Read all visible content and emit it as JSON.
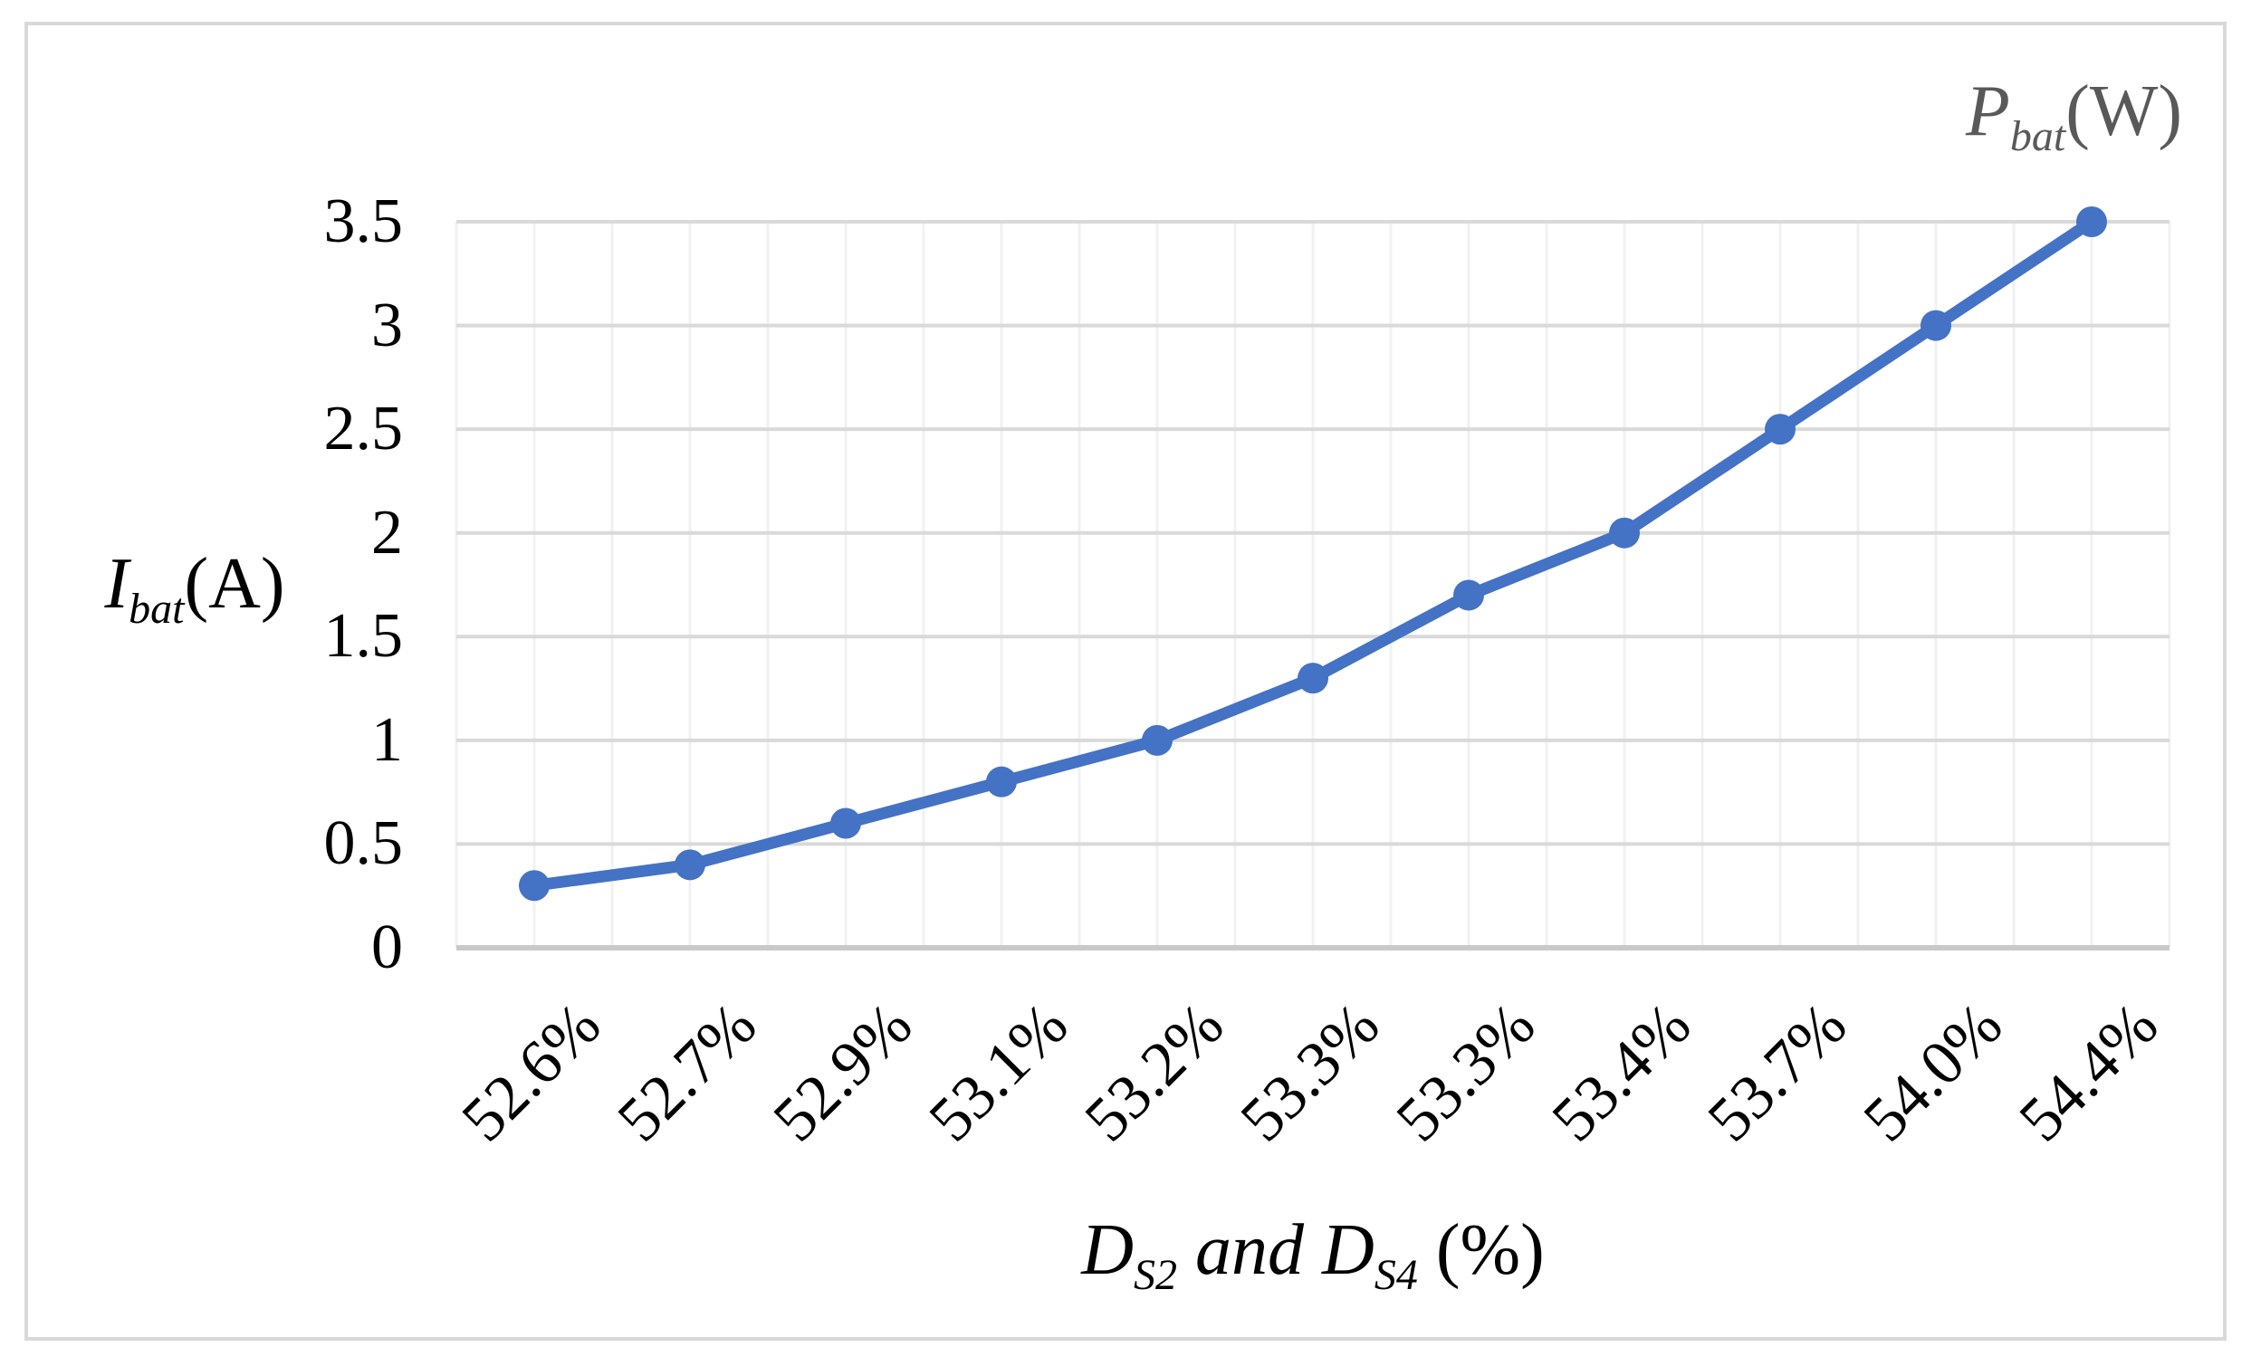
{
  "figure": {
    "y_axis_title": {
      "symbol": "I",
      "sub": "bat",
      "unit": "(A)"
    },
    "x_axis_title": {
      "symbol1": "D",
      "sub1": "S2",
      "conj": "and",
      "symbol2": "D",
      "sub2": "S4",
      "unit": "(%)"
    },
    "corner_label": {
      "symbol": "P",
      "sub": "bat",
      "unit": "(W)"
    }
  },
  "chart_data": {
    "type": "line",
    "title": "",
    "xlabel": "D_S2 and D_S4 (%)",
    "ylabel": "I_bat (A)",
    "corner_label": "P_bat (W)",
    "categories": [
      "52.6%",
      "52.7%",
      "52.9%",
      "53.1%",
      "53.2%",
      "53.3%",
      "53.3%",
      "53.4%",
      "53.7%",
      "54.0%",
      "54.4%"
    ],
    "values": [
      0.3,
      0.4,
      0.6,
      0.8,
      1.0,
      1.3,
      1.7,
      2.0,
      2.5,
      3.0,
      3.5
    ],
    "series": [
      {
        "name": "Ibat",
        "values": [
          0.3,
          0.4,
          0.6,
          0.8,
          1.0,
          1.3,
          1.7,
          2.0,
          2.5,
          3.0,
          3.5
        ]
      }
    ],
    "ylim": [
      0,
      3.5
    ],
    "ytick_step": 0.5,
    "ytick_labels": [
      "0",
      "0.5",
      "1",
      "1.5",
      "2",
      "2.5",
      "3",
      "3.5"
    ],
    "grid": true,
    "legend_position": "none",
    "marker": "circle",
    "line_color": "#4472C4",
    "major_gridline_color": "#d9d9d9",
    "minor_gridline_color": "#f1f1f1",
    "axis_line_color": "#c9c9c9"
  }
}
